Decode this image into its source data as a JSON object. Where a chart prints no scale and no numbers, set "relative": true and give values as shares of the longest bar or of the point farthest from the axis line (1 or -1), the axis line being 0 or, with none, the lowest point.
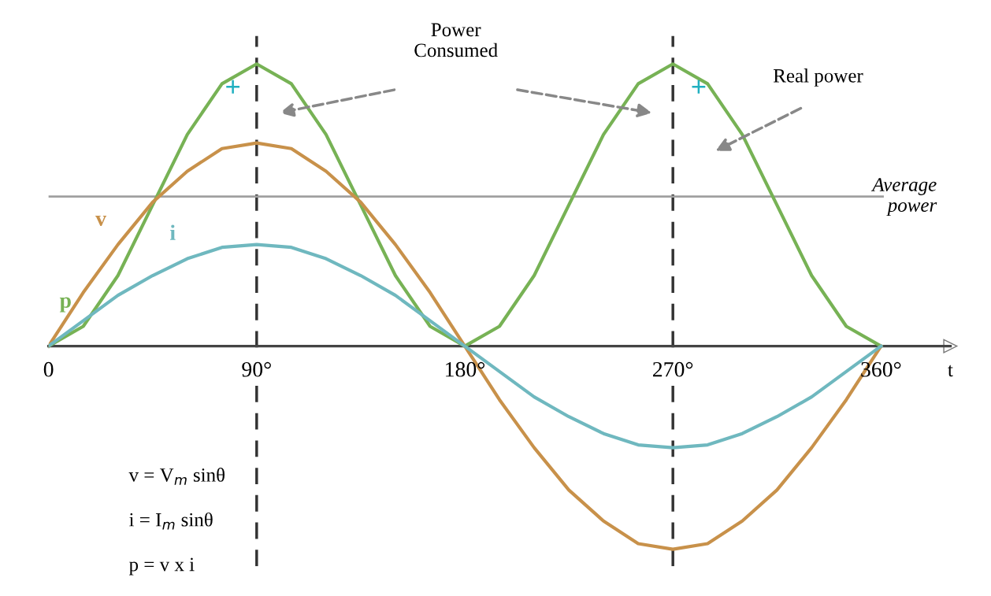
{
  "chart_data": {
    "type": "line",
    "relative": true,
    "xlabel": "t",
    "series": [
      {
        "name": "p",
        "color": "#77b255",
        "x": [
          0,
          15,
          30,
          45,
          60,
          75,
          90,
          105,
          120,
          135,
          150,
          165,
          180,
          195,
          210,
          225,
          240,
          255,
          270,
          285,
          300,
          315,
          330,
          345,
          360
        ],
        "values": [
          0,
          0.07,
          0.25,
          0.5,
          0.75,
          0.93,
          1,
          0.93,
          0.75,
          0.5,
          0.25,
          0.07,
          0,
          0.07,
          0.25,
          0.5,
          0.75,
          0.93,
          1,
          0.93,
          0.75,
          0.5,
          0.25,
          0.07,
          0
        ]
      },
      {
        "name": "v",
        "color": "#c8914a",
        "x": [
          0,
          15,
          30,
          45,
          60,
          75,
          90,
          105,
          120,
          135,
          150,
          165,
          180,
          195,
          210,
          225,
          240,
          255,
          270,
          285,
          300,
          315,
          330,
          345,
          360
        ],
        "values": [
          0,
          0.19,
          0.36,
          0.51,
          0.62,
          0.7,
          0.72,
          0.7,
          0.62,
          0.51,
          0.36,
          0.19,
          0,
          -0.19,
          -0.36,
          -0.51,
          -0.62,
          -0.7,
          -0.72,
          -0.7,
          -0.62,
          -0.51,
          -0.36,
          -0.19,
          0
        ]
      },
      {
        "name": "i",
        "color": "#6fb8bf",
        "x": [
          0,
          15,
          30,
          45,
          60,
          75,
          90,
          105,
          120,
          135,
          150,
          165,
          180,
          195,
          210,
          225,
          240,
          255,
          270,
          285,
          300,
          315,
          330,
          345,
          360
        ],
        "values": [
          0,
          0.09,
          0.18,
          0.25,
          0.31,
          0.35,
          0.36,
          0.35,
          0.31,
          0.25,
          0.18,
          0.09,
          0,
          -0.09,
          -0.18,
          -0.25,
          -0.31,
          -0.35,
          -0.36,
          -0.35,
          -0.31,
          -0.25,
          -0.18,
          -0.09,
          0
        ]
      }
    ],
    "xlim": [
      0,
      390
    ],
    "xticks": [
      {
        "value": 0,
        "label": "0"
      },
      {
        "value": 90,
        "label": "90°"
      },
      {
        "value": 180,
        "label": "180°"
      },
      {
        "value": 270,
        "label": "270°"
      },
      {
        "value": 360,
        "label": "360°"
      }
    ],
    "ref_lines": [
      {
        "axis": "x",
        "value": 90,
        "color": "#333333",
        "line_style": "dashed"
      },
      {
        "axis": "x",
        "value": 270,
        "color": "#333333",
        "line_style": "dashed"
      },
      {
        "axis": "y",
        "value": 0.53,
        "label": "Average power",
        "color": "#a0a0a0",
        "line_style": "solid"
      }
    ],
    "annotations": [
      "+",
      "+",
      "Power Consumed",
      "Real power",
      "v = V$_{m}$ sinθ",
      "i = I$_{m}$ sinθ",
      "p = v x i"
    ],
    "grid": false,
    "legend": false,
    "marker": "none",
    "line_style": "solid"
  }
}
